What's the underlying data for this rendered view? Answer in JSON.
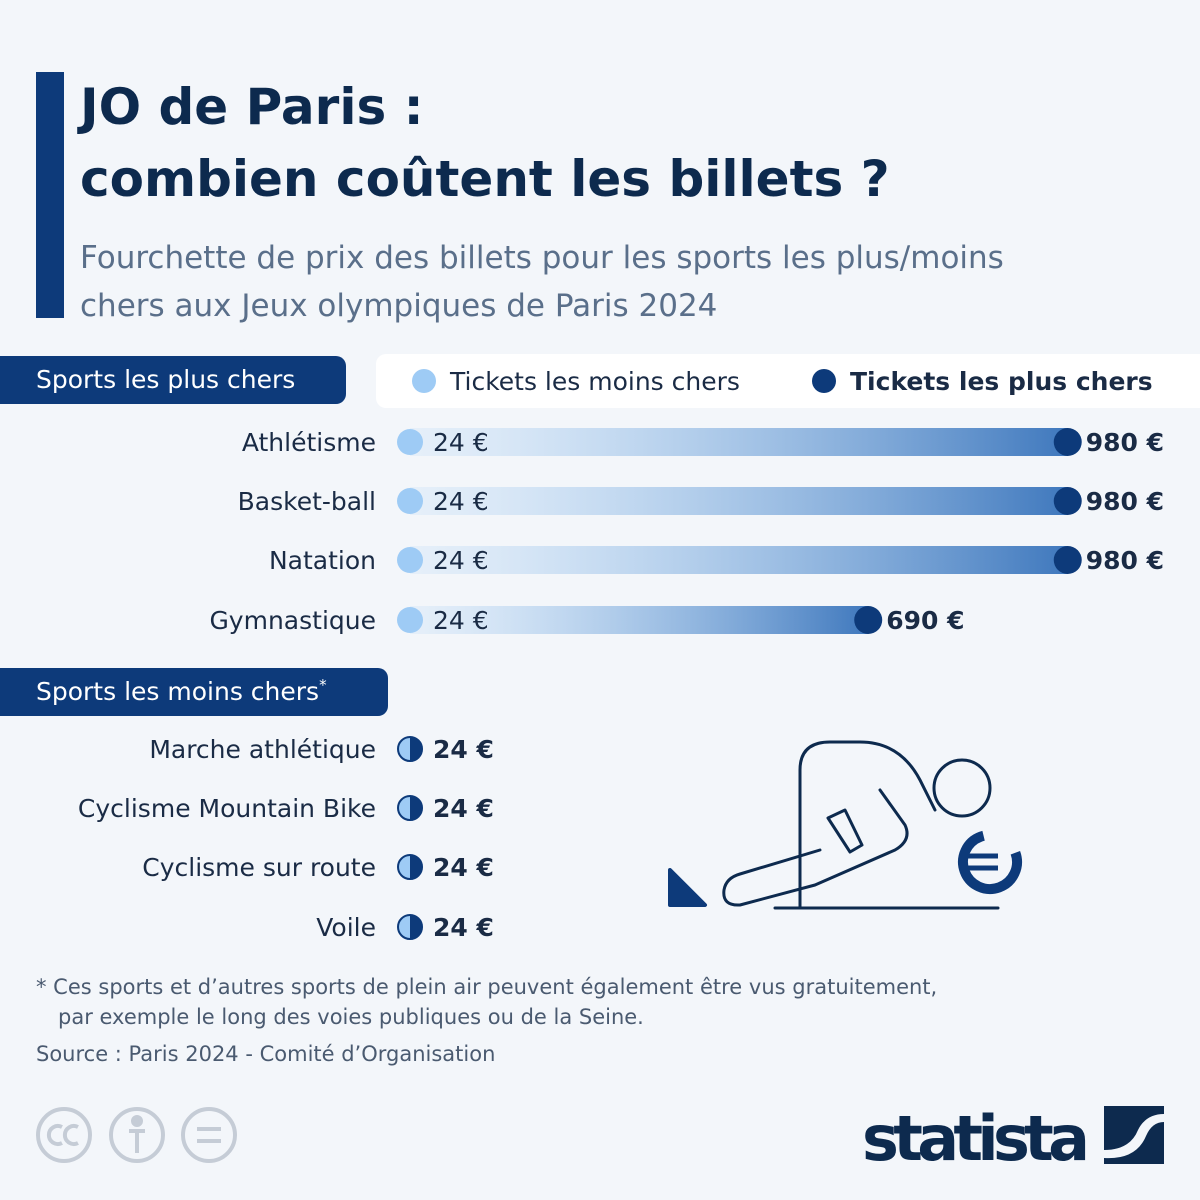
{
  "chart_data": [
    {
      "type": "dumbbell",
      "title": [
        "JO de Paris :",
        "combien coûtent les billets ?"
      ],
      "subtitle": [
        "Fourchette de prix des billets pour les sports les plus/moins",
        "chers aux Jeux olympiques de Paris 2024"
      ],
      "section": "Sports les plus chers",
      "categories": [
        "Athlétisme",
        "Basket-ball",
        "Natation",
        "Gymnastique"
      ],
      "series": [
        {
          "name": "Tickets les moins chers",
          "color": "#9ecbf5",
          "values": [
            24,
            24,
            24,
            24
          ],
          "value_labels": [
            "24 €",
            "24 €",
            "24 €",
            "24 €"
          ]
        },
        {
          "name": "Tickets les plus chers",
          "color": "#0d3a7a",
          "values": [
            980,
            980,
            980,
            690
          ],
          "value_labels": [
            "980 €",
            "980 €",
            "980 €",
            "690 €"
          ]
        }
      ]
    },
    {
      "type": "dumbbell",
      "section": "Sports les moins chers",
      "note_marker": "*",
      "categories": [
        "Marche athlétique",
        "Cyclisme Mountain Bike",
        "Cyclisme sur route",
        "Voile"
      ],
      "series": [
        {
          "color": "#9ecbf5",
          "values": [
            24,
            24,
            24,
            24
          ]
        },
        {
          "color": "#0d3a7a",
          "values": [
            24,
            24,
            24,
            24
          ],
          "value_labels": [
            "24 €",
            "24 €",
            "24 €",
            "24 €"
          ]
        }
      ]
    }
  ],
  "footnote": [
    "* Ces sports et d’autres sports de plein air peuvent également être vus gratuitement,",
    "par exemple le long des voies publiques ou de la Seine."
  ],
  "source": "Source : Paris 2024 - Comité d’Organisation",
  "brand": "statista"
}
